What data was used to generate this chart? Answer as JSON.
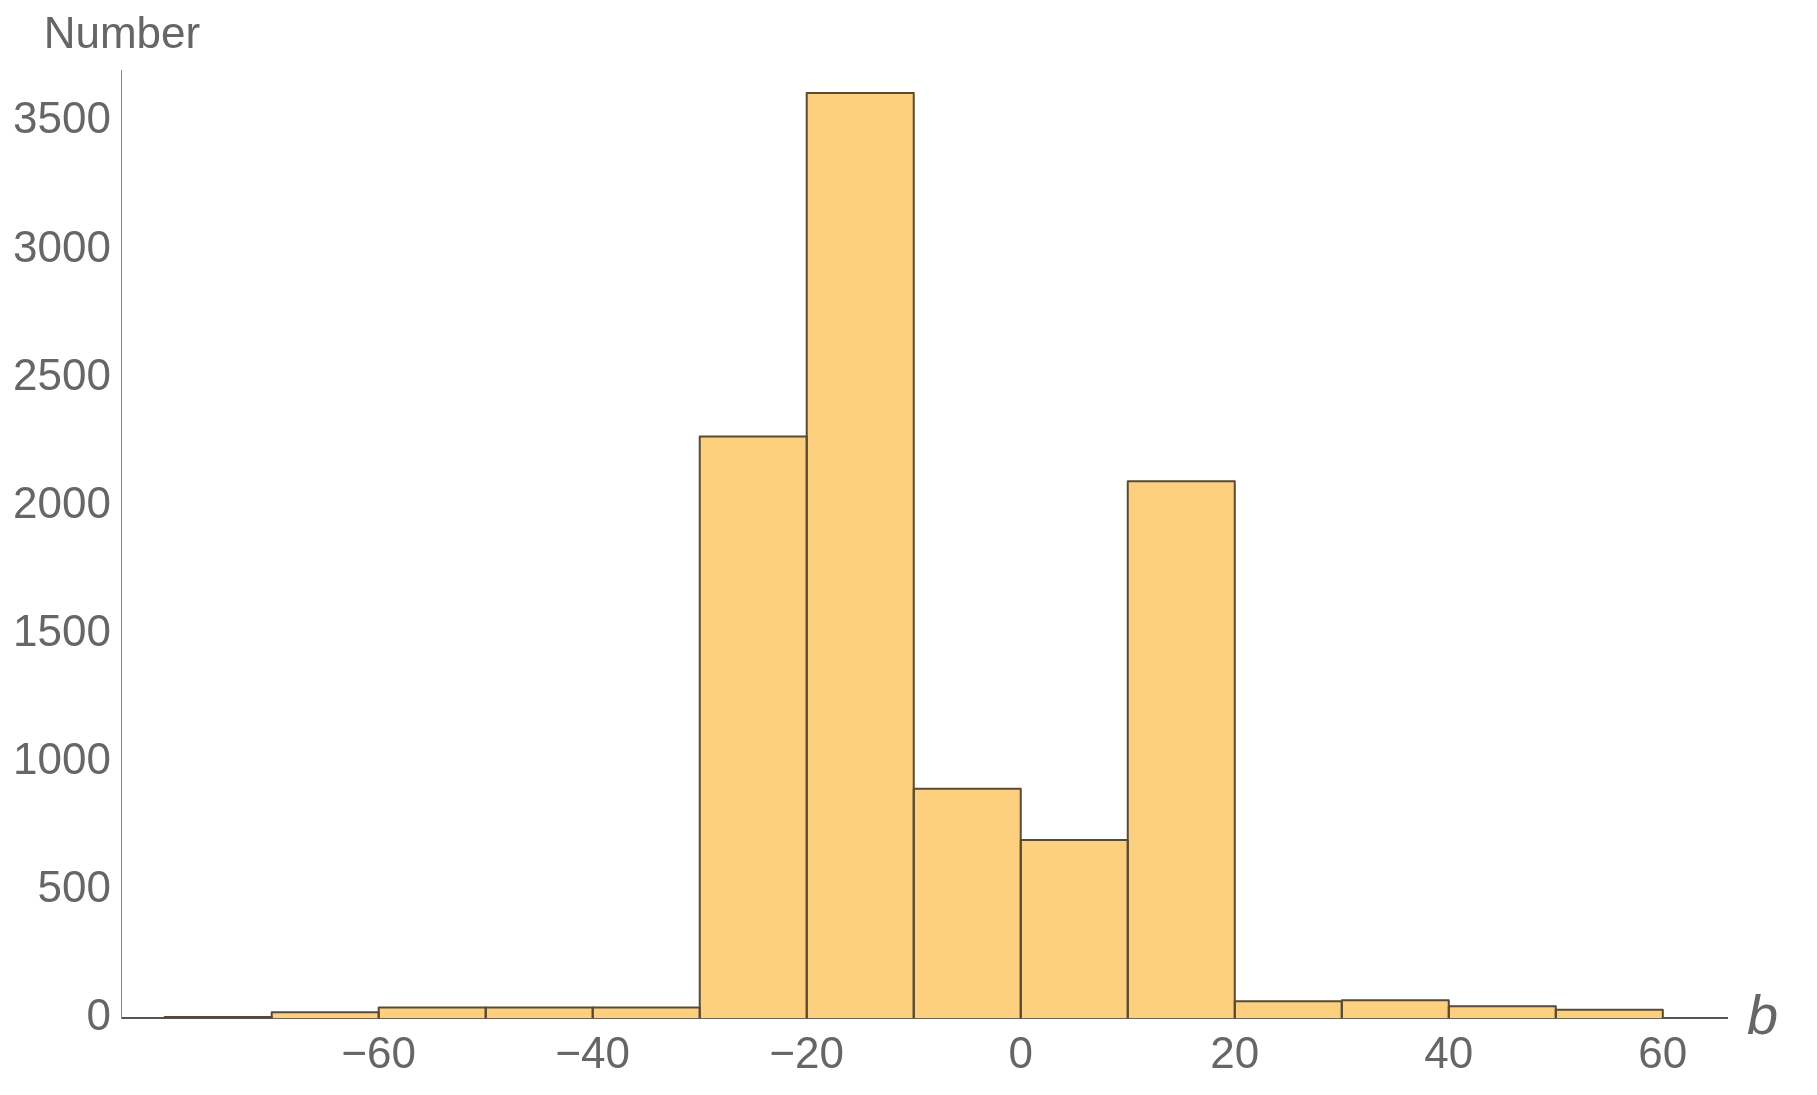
{
  "chart_data": {
    "type": "histogram",
    "xlabel": "b",
    "ylabel": "Number",
    "bins": [
      -80,
      -70,
      -60,
      -50,
      -40,
      -30,
      -20,
      -10,
      0,
      10,
      20,
      30,
      40,
      50,
      60
    ],
    "values": [
      5,
      23,
      42,
      42,
      42,
      2270,
      3610,
      895,
      695,
      2095,
      66,
      70,
      47,
      33
    ],
    "colors": [
      "#5a4a33",
      "#fcd07e",
      "#fcd07e",
      "#fcd07e",
      "#fcd07e",
      "#fcd07e",
      "#fcd07e",
      "#fcd07e",
      "#fcd07e",
      "#fcd07e",
      "#fcd07e",
      "#fcd07e",
      "#fcd07e",
      "#fcd07e"
    ],
    "xlim": [
      -84,
      66
    ],
    "xticks": [
      {
        "value": -60,
        "label": "−60"
      },
      {
        "value": -40,
        "label": "−40"
      },
      {
        "value": -20,
        "label": "−20"
      },
      0,
      20,
      40,
      60
    ],
    "ylim": [
      0,
      3700
    ],
    "yticks": [
      0,
      500,
      1000,
      1500,
      2000,
      2500,
      3000,
      3500
    ],
    "grid": false,
    "legend": false
  }
}
